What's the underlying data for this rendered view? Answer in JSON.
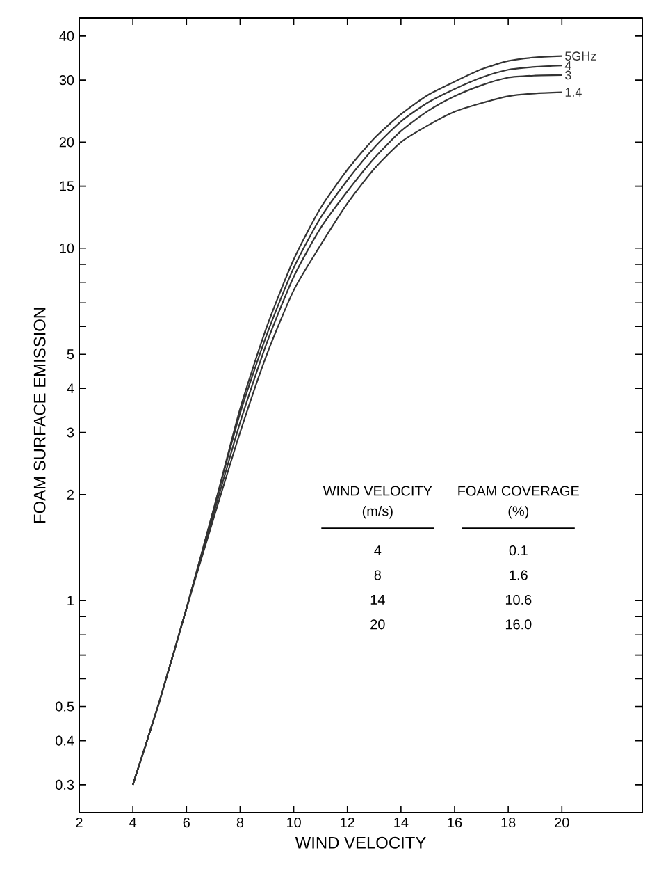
{
  "chart_data": {
    "type": "line",
    "xlabel": "WIND VELOCITY",
    "ylabel": "FOAM SURFACE EMISSION",
    "log": "y",
    "xlim": [
      2,
      23
    ],
    "ylim": [
      0.25,
      45
    ],
    "xticks": [
      2,
      4,
      6,
      8,
      10,
      12,
      14,
      16,
      18,
      20
    ],
    "yticks": [
      0.3,
      0.4,
      0.5,
      {
        "value": 0.6,
        "label": null
      },
      {
        "value": 0.7,
        "label": null
      },
      {
        "value": 0.8,
        "label": null
      },
      {
        "value": 0.9,
        "label": null
      },
      1,
      2,
      3,
      4,
      5,
      {
        "value": 6,
        "label": null
      },
      {
        "value": 7,
        "label": null
      },
      {
        "value": 8,
        "label": null
      },
      {
        "value": 9,
        "label": null
      },
      10,
      15,
      20,
      30,
      40
    ],
    "x": [
      4,
      5,
      6,
      7,
      8,
      9,
      10,
      11,
      12,
      13,
      14,
      15,
      16,
      17,
      18,
      19,
      20
    ],
    "series": [
      {
        "name": "5GHz",
        "color": "#333333",
        "values": [
          0.3,
          0.52,
          0.95,
          1.8,
          3.5,
          6.0,
          9.3,
          13,
          16.7,
          20.5,
          24.0,
          27.2,
          29.7,
          32.2,
          34.0,
          34.8,
          35.1
        ]
      },
      {
        "name": "4",
        "color": "#333333",
        "values": [
          0.3,
          0.52,
          0.95,
          1.8,
          3.4,
          5.7,
          8.8,
          12.2,
          15.6,
          19.3,
          22.9,
          25.9,
          28.3,
          30.5,
          32.1,
          32.7,
          33.0
        ]
      },
      {
        "name": "3",
        "color": "#333333",
        "values": [
          0.3,
          0.52,
          0.95,
          1.75,
          3.2,
          5.4,
          8.3,
          11.4,
          14.5,
          18.0,
          21.5,
          24.5,
          27.0,
          29.0,
          30.5,
          30.9,
          31.0
        ]
      },
      {
        "name": "1.4",
        "color": "#333333",
        "values": [
          0.3,
          0.52,
          0.95,
          1.7,
          3.0,
          5.0,
          7.6,
          10.2,
          13.4,
          16.8,
          20.0,
          22.3,
          24.4,
          25.8,
          27.0,
          27.5,
          27.7
        ]
      }
    ],
    "line_style": "solid",
    "annotations": [
      "WIND VELOCITY",
      "(m/s)",
      "FOAM COVERAGE",
      "(%)",
      "4",
      "0.1",
      "8",
      "1.6",
      "14",
      "10.6",
      "20",
      "16.0"
    ]
  }
}
